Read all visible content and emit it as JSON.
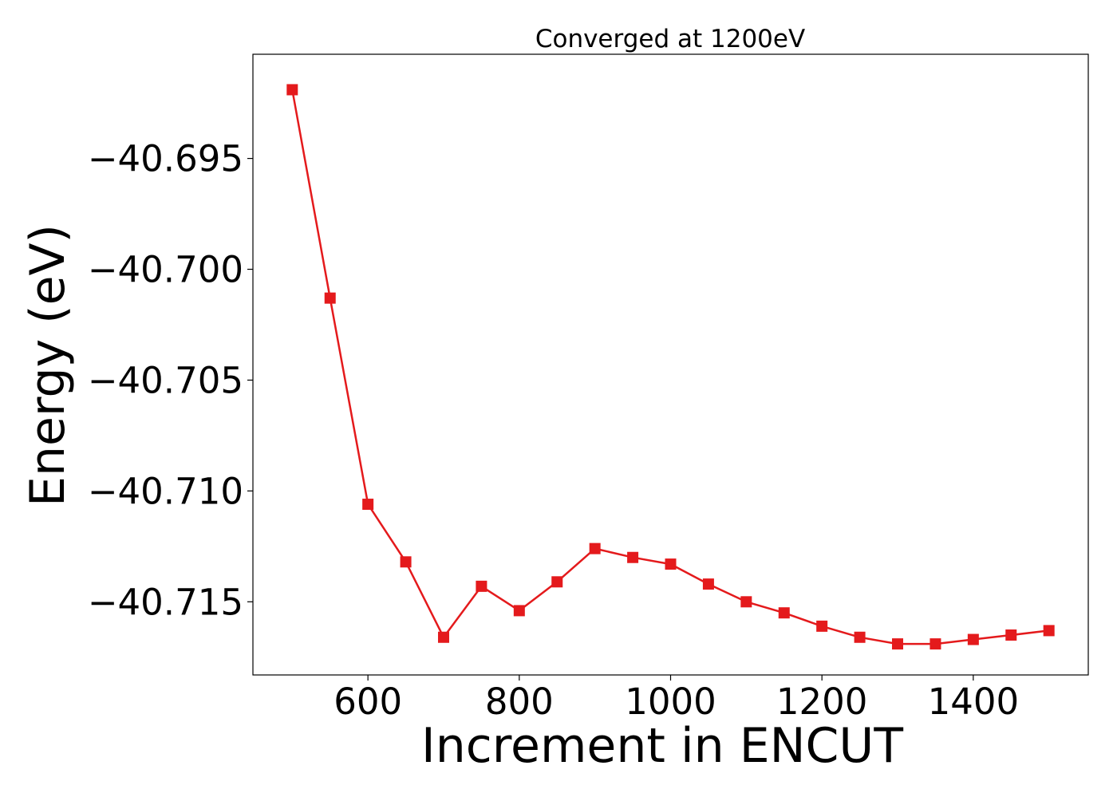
{
  "chart_data": {
    "type": "line",
    "title": "Converged at 1200eV",
    "xlabel": "Increment in ENCUT",
    "ylabel": "Energy (eV)",
    "xlim": [
      448,
      1552
    ],
    "ylim": [
      -40.7183,
      -40.6903
    ],
    "x_ticks": [
      {
        "value": 600,
        "label": "600"
      },
      {
        "value": 800,
        "label": "800"
      },
      {
        "value": 1000,
        "label": "1000"
      },
      {
        "value": 1200,
        "label": "1200"
      },
      {
        "value": 1400,
        "label": "1400"
      }
    ],
    "y_ticks": [
      {
        "value": -40.695,
        "label": "−40.695"
      },
      {
        "value": -40.7,
        "label": "−40.700"
      },
      {
        "value": -40.705,
        "label": "−40.705"
      },
      {
        "value": -40.71,
        "label": "−40.710"
      },
      {
        "value": -40.715,
        "label": "−40.715"
      }
    ],
    "grid": false,
    "legend": "none",
    "series": [
      {
        "color": "#e41a1c",
        "marker": "square",
        "x": [
          500,
          550,
          600,
          650,
          700,
          750,
          800,
          850,
          900,
          950,
          1000,
          1050,
          1100,
          1150,
          1200,
          1250,
          1300,
          1350,
          1400,
          1450,
          1500
        ],
        "y": [
          -40.6919,
          -40.7013,
          -40.7106,
          -40.7132,
          -40.7166,
          -40.7143,
          -40.7154,
          -40.7141,
          -40.7126,
          -40.713,
          -40.7133,
          -40.7142,
          -40.715,
          -40.7155,
          -40.7161,
          -40.7166,
          -40.7169,
          -40.7169,
          -40.7167,
          -40.7165,
          -40.7163
        ]
      }
    ]
  }
}
